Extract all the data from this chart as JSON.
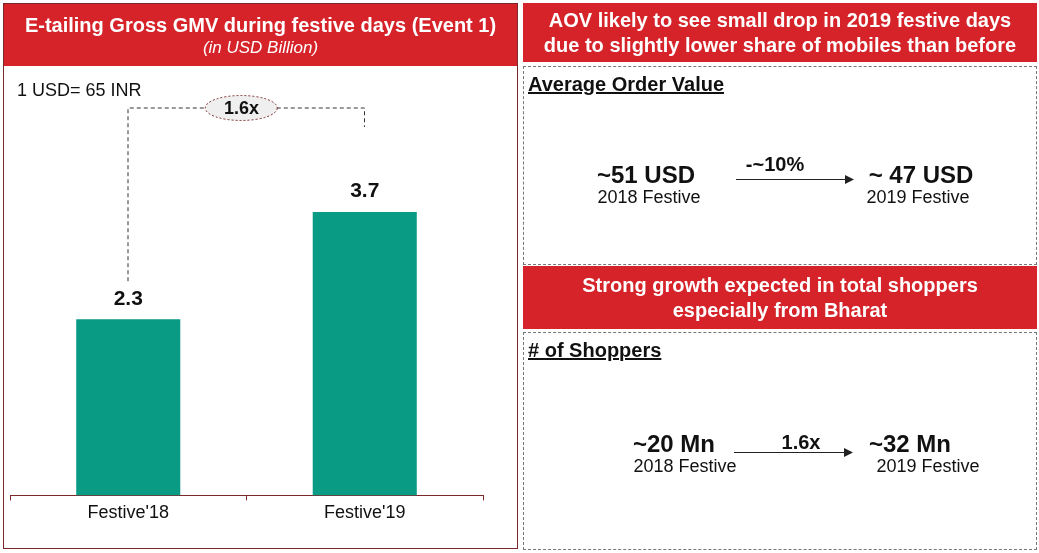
{
  "chart_data": [
    {
      "type": "bar",
      "title": "E-tailing Gross GMV during festive days (Event 1)",
      "subtitle": "(in USD Billion)",
      "categories": [
        "Festive'18",
        "Festive'19"
      ],
      "values": [
        2.3,
        3.7
      ],
      "color": "#0a9b85",
      "data_labels": true,
      "annotations": [
        "1 USD= 65 INR",
        "1.6x"
      ]
    },
    {
      "type": "other",
      "title": "AOV likely to see small drop in 2019 festive days due to slightly lower share of mobiles than before",
      "subtitle": "Average Order Value",
      "annotations": [
        "~51 USD",
        "2018 Festive",
        "-~10%",
        "~ 47 USD",
        "2019 Festive"
      ]
    },
    {
      "type": "other",
      "title": "Strong growth expected in total shoppers especially from Bharat",
      "subtitle": "# of Shoppers",
      "annotations": [
        "~20 Mn",
        "2018 Festive",
        "1.6x",
        "~32 Mn",
        "2019 Festive"
      ]
    }
  ]
}
